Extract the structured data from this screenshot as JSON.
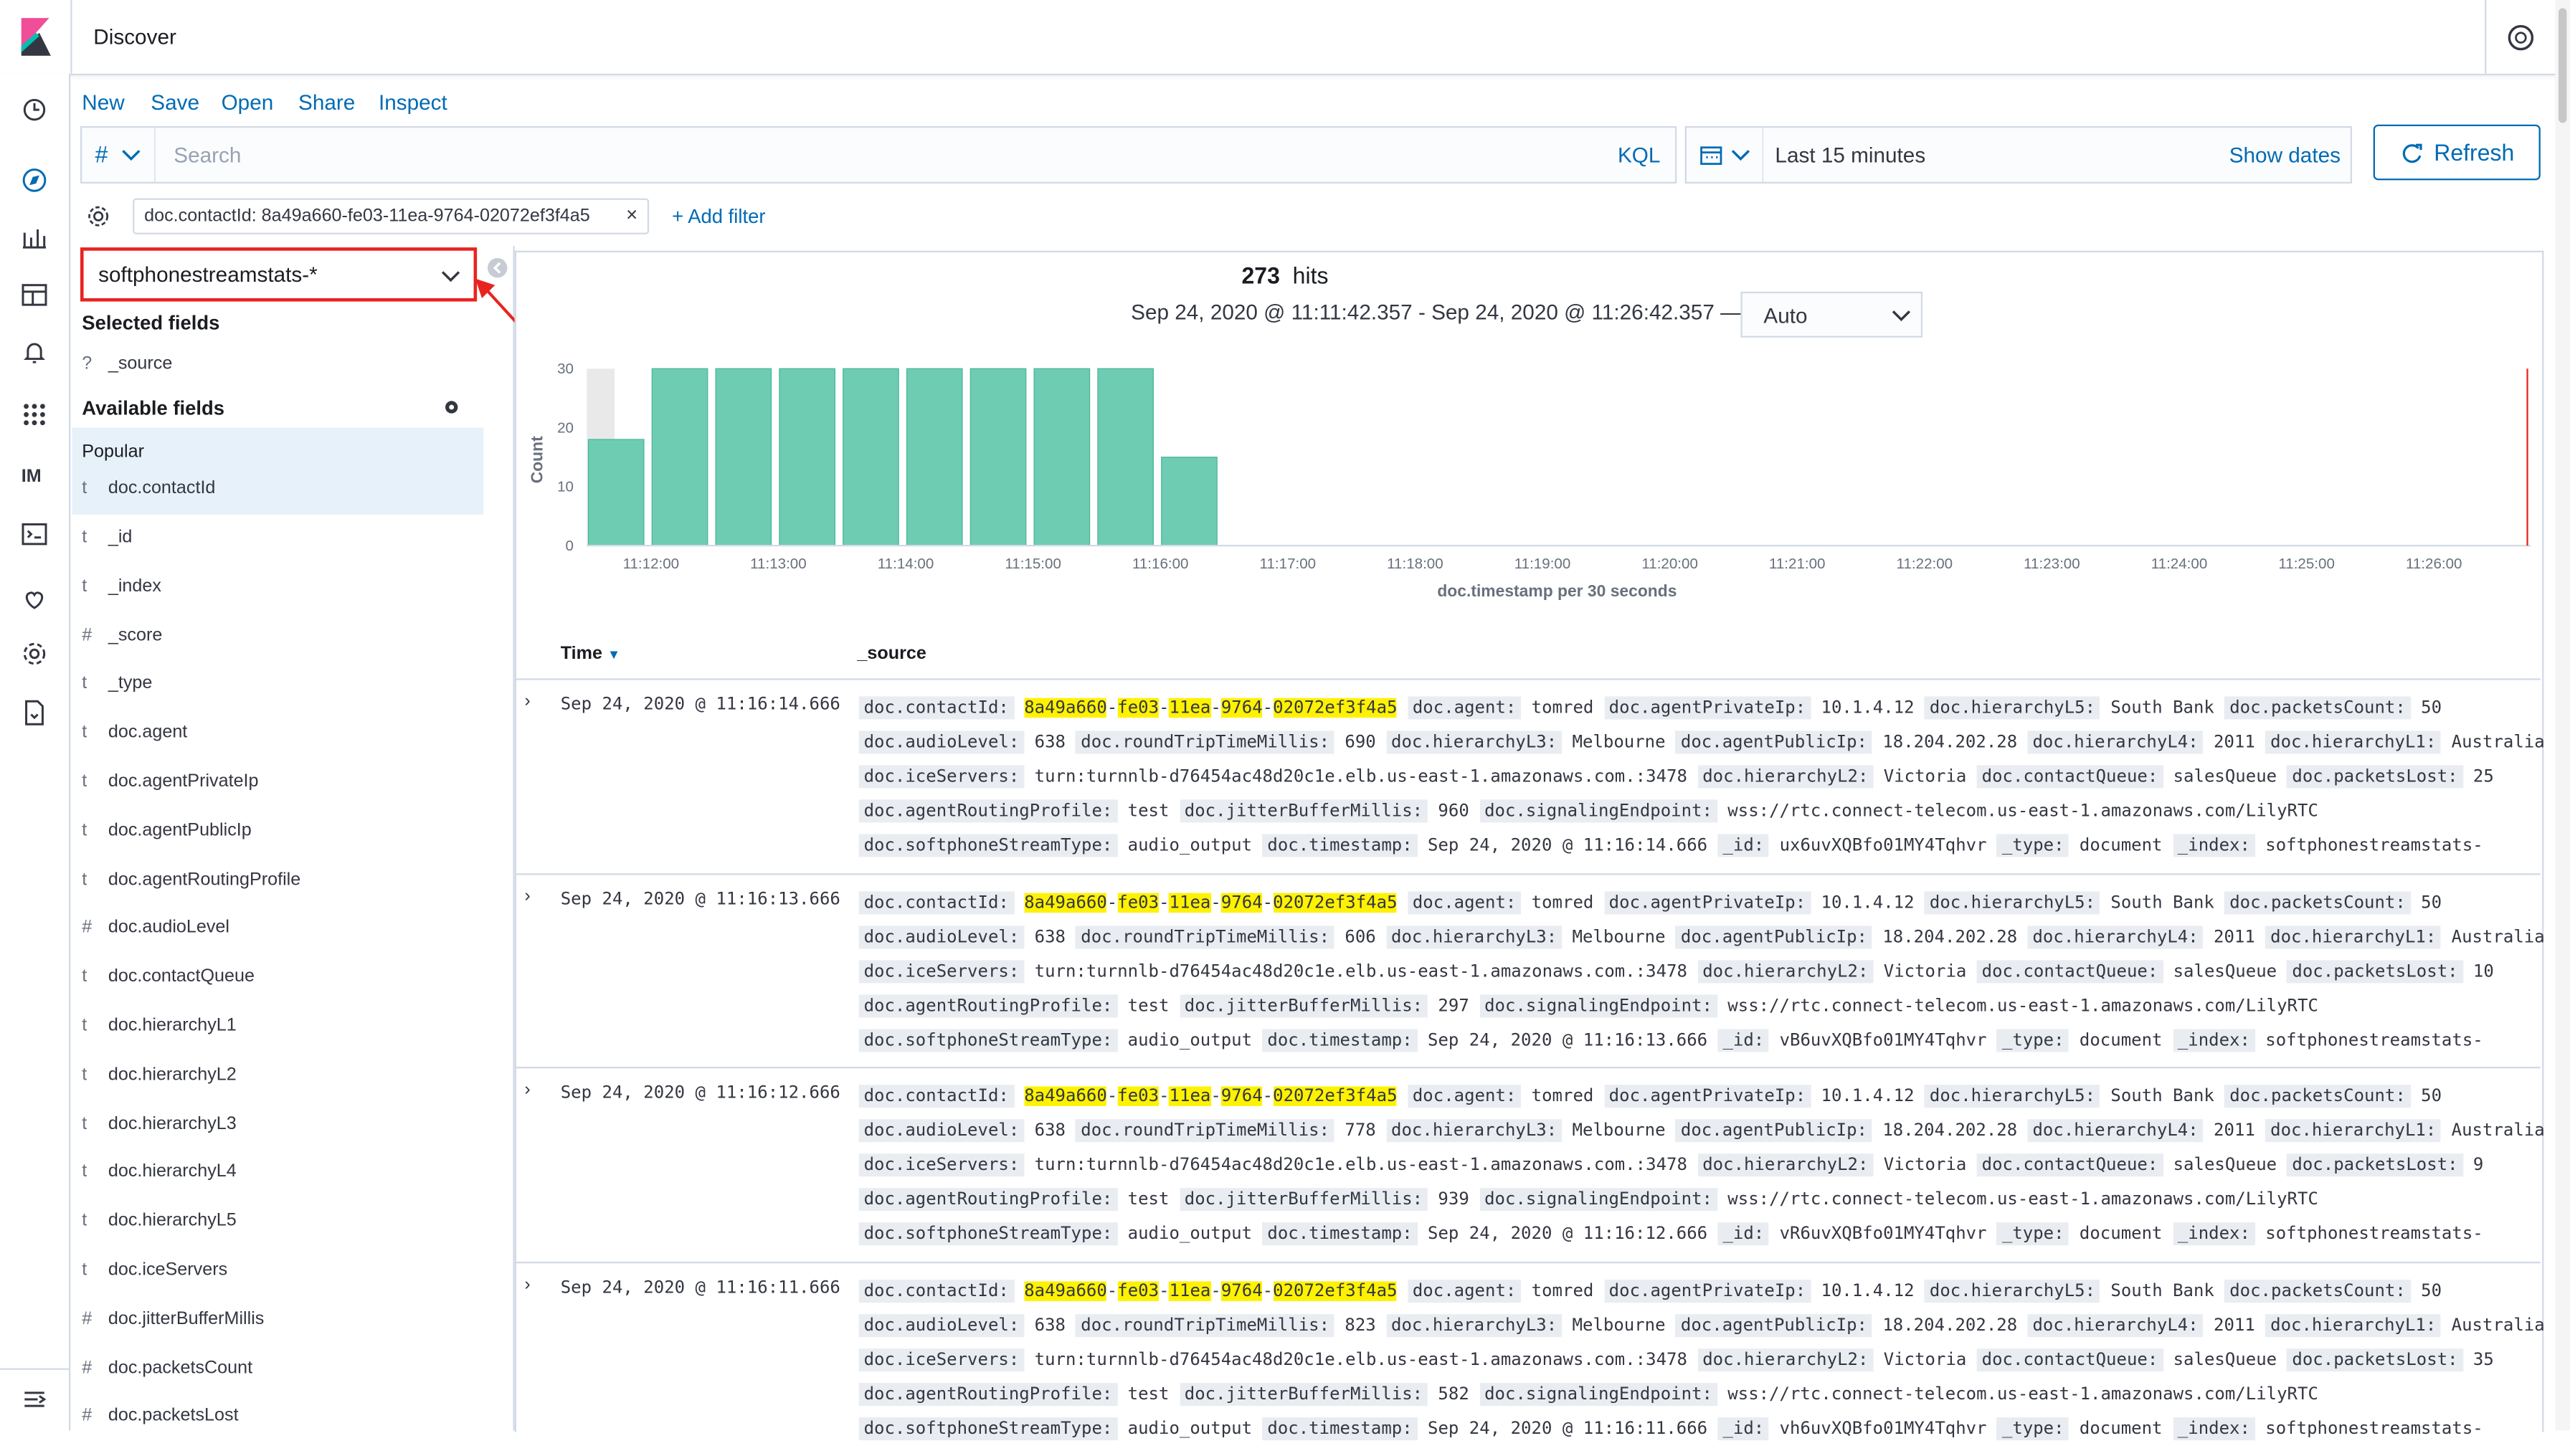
{
  "app": {
    "title": "Discover"
  },
  "menu": {
    "new": "New",
    "save": "Save",
    "open": "Open",
    "share": "Share",
    "inspect": "Inspect"
  },
  "query": {
    "prefix": "#",
    "placeholder": "Search",
    "language": "KQL"
  },
  "time": {
    "range": "Last 15 minutes",
    "show_dates": "Show dates",
    "refresh": "Refresh"
  },
  "filters": {
    "pill": "doc.contactId: 8a49a660-fe03-11ea-9764-02072ef3f4a5",
    "add": "+ Add filter"
  },
  "sidebar": {
    "index_pattern": "softphonestreamstats-*",
    "selected_title": "Selected fields",
    "selected": [
      {
        "type": "?",
        "name": "_source"
      }
    ],
    "available_title": "Available fields",
    "popular_title": "Popular",
    "popular": [
      {
        "type": "t",
        "name": "doc.contactId"
      }
    ],
    "fields": [
      {
        "type": "t",
        "name": "_id"
      },
      {
        "type": "t",
        "name": "_index"
      },
      {
        "type": "#",
        "name": "_score"
      },
      {
        "type": "t",
        "name": "_type"
      },
      {
        "type": "t",
        "name": "doc.agent"
      },
      {
        "type": "t",
        "name": "doc.agentPrivateIp"
      },
      {
        "type": "t",
        "name": "doc.agentPublicIp"
      },
      {
        "type": "t",
        "name": "doc.agentRoutingProfile"
      },
      {
        "type": "#",
        "name": "doc.audioLevel"
      },
      {
        "type": "t",
        "name": "doc.contactQueue"
      },
      {
        "type": "t",
        "name": "doc.hierarchyL1"
      },
      {
        "type": "t",
        "name": "doc.hierarchyL2"
      },
      {
        "type": "t",
        "name": "doc.hierarchyL3"
      },
      {
        "type": "t",
        "name": "doc.hierarchyL4"
      },
      {
        "type": "t",
        "name": "doc.hierarchyL5"
      },
      {
        "type": "t",
        "name": "doc.iceServers"
      },
      {
        "type": "#",
        "name": "doc.jitterBufferMillis"
      },
      {
        "type": "#",
        "name": "doc.packetsCount"
      },
      {
        "type": "#",
        "name": "doc.packetsLost"
      }
    ]
  },
  "hits": {
    "count": "273",
    "label": "hits"
  },
  "interval": {
    "range": "Sep 24, 2020 @ 11:11:42.357 - Sep 24, 2020 @ 11:26:42.357 —",
    "selected": "Auto"
  },
  "chart_data": {
    "type": "bar",
    "ylabel": "Count",
    "xlabel": "doc.timestamp per 30 seconds",
    "yticks": [
      0,
      10,
      20,
      30
    ],
    "ylim": [
      0,
      30
    ],
    "xticks": [
      "11:12:00",
      "11:13:00",
      "11:14:00",
      "11:15:00",
      "11:16:00",
      "11:17:00",
      "11:18:00",
      "11:19:00",
      "11:20:00",
      "11:21:00",
      "11:22:00",
      "11:23:00",
      "11:24:00",
      "11:25:00",
      "11:26:00"
    ],
    "categories": [
      "11:11:30",
      "11:12:00",
      "11:12:30",
      "11:13:00",
      "11:13:30",
      "11:14:00",
      "11:14:30",
      "11:15:00",
      "11:15:30",
      "11:16:00"
    ],
    "values": [
      18,
      30,
      30,
      30,
      30,
      30,
      30,
      30,
      30,
      15
    ],
    "bar_color": "#6dccb1",
    "grid": false
  },
  "table": {
    "col_time": "Time",
    "col_source": "_source",
    "contact_parts": [
      "8a49a660",
      "fe03",
      "11ea",
      "9764",
      "02072ef3f4a5"
    ],
    "rows": [
      {
        "time": "Sep 24, 2020 @ 11:16:14.666",
        "lost": "25",
        "jitter": "960",
        "rtt": "690",
        "id": "ux6uvXQBfo01MY4Tqhvr"
      },
      {
        "time": "Sep 24, 2020 @ 11:16:13.666",
        "lost": "10",
        "jitter": "297",
        "rtt": "606",
        "id": "vB6uvXQBfo01MY4Tqhvr"
      },
      {
        "time": "Sep 24, 2020 @ 11:16:12.666",
        "lost": "9",
        "jitter": "939",
        "rtt": "778",
        "id": "vR6uvXQBfo01MY4Tqhvr"
      },
      {
        "time": "Sep 24, 2020 @ 11:16:11.666",
        "lost": "35",
        "jitter": "582",
        "rtt": "823",
        "id": "vh6uvXQBfo01MY4Tqhvr"
      }
    ],
    "common": {
      "agent": "tomred",
      "agentPrivateIp": "10.1.4.12",
      "hierarchyL5": "South Bank",
      "packetsCount": "50",
      "audioLevel": "638",
      "hierarchyL3": "Melbourne",
      "agentPublicIp": "18.204.202.28",
      "hierarchyL4": "2011",
      "hierarchyL1": "Australia",
      "iceServers": "turn:turnnlb-d76454ac48d20c1e.elb.us-east-1.amazonaws.com.:3478",
      "hierarchyL2": "Victoria",
      "contactQueue": "salesQueue",
      "agentRoutingProfile": "test",
      "signalingEndpoint": "wss://rtc.connect-telecom.us-east-1.amazonaws.com/LilyRTC",
      "softphoneStreamType": "audio_output",
      "type": "document",
      "index": "softphonestreamstats-"
    }
  },
  "colors": {
    "accent": "#006bb4",
    "highlight": "#fff200",
    "annotation": "#e8231f"
  }
}
